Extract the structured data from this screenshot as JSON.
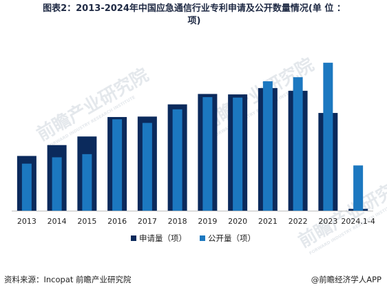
{
  "title_line1": "图表2：2013-2024年中国应急通信行业专利申请及公开数量情况(单 位 ：",
  "title_line2": "项)",
  "chart_data": {
    "type": "bar",
    "categories": [
      "2013",
      "2014",
      "2015",
      "2016",
      "2017",
      "2018",
      "2019",
      "2020",
      "2021",
      "2022",
      "2023",
      "2024.1-4"
    ],
    "series": [
      {
        "name": "申请量（项）",
        "color": "#0b2a5c",
        "values": [
          1210,
          1450,
          1640,
          2070,
          2080,
          2350,
          2580,
          2570,
          2710,
          2650,
          2160,
          40
        ]
      },
      {
        "name": "公开量（项）",
        "color": "#1c78c0",
        "values": [
          1040,
          1180,
          1250,
          2020,
          1940,
          2240,
          2510,
          2500,
          2860,
          2950,
          3270,
          1000
        ]
      }
    ],
    "ylim": [
      0,
      3500
    ],
    "grid": false,
    "legend_position": "bottom"
  },
  "footer": {
    "source": "资料来源：Incopat 前瞻产业研究院",
    "brand": "@前瞻经济学人APP"
  },
  "watermark": {
    "text": "前瞻产业研究院",
    "sub": "FORWARD INDUSTRY RESEARCH INSTITUTE"
  }
}
